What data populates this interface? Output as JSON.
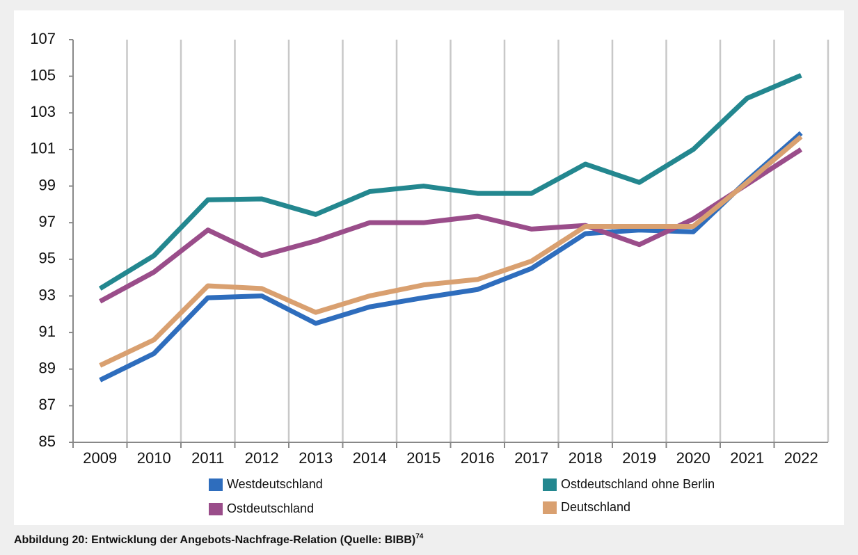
{
  "chart_data": {
    "type": "line",
    "caption": "Abbildung 20: Entwicklung der Angebots-Nachfrage-Relation (Quelle: BIBB)",
    "caption_footnote": "74",
    "categories": [
      "2009",
      "2010",
      "2011",
      "2012",
      "2013",
      "2014",
      "2015",
      "2016",
      "2017",
      "2018",
      "2019",
      "2020",
      "2021",
      "2022"
    ],
    "ylim": [
      85,
      107
    ],
    "yticks": [
      85,
      87,
      89,
      91,
      93,
      95,
      97,
      99,
      101,
      103,
      105,
      107
    ],
    "grid": true,
    "series": [
      {
        "name": "Westdeutschland",
        "color": "#2e6dbd",
        "values": [
          88.4,
          89.85,
          92.9,
          93.0,
          91.5,
          92.4,
          92.9,
          93.35,
          94.5,
          96.4,
          96.6,
          96.5,
          99.3,
          101.9
        ]
      },
      {
        "name": "Ostdeutschland ohne Berlin",
        "color": "#23878f",
        "values": [
          93.4,
          95.2,
          98.25,
          98.3,
          97.45,
          98.7,
          99.0,
          98.6,
          98.6,
          100.2,
          99.2,
          101.0,
          103.8,
          105.05
        ]
      },
      {
        "name": "Ostdeutschland",
        "color": "#9a4d8a",
        "values": [
          92.7,
          94.3,
          96.6,
          95.2,
          96.0,
          97.0,
          97.0,
          97.35,
          96.65,
          96.85,
          95.8,
          97.2,
          99.1,
          101.0
        ]
      },
      {
        "name": "Deutschland",
        "color": "#d9a070",
        "values": [
          89.2,
          90.6,
          93.55,
          93.4,
          92.1,
          93.0,
          93.6,
          93.9,
          94.9,
          96.8,
          96.8,
          96.8,
          99.2,
          101.7
        ]
      }
    ]
  }
}
